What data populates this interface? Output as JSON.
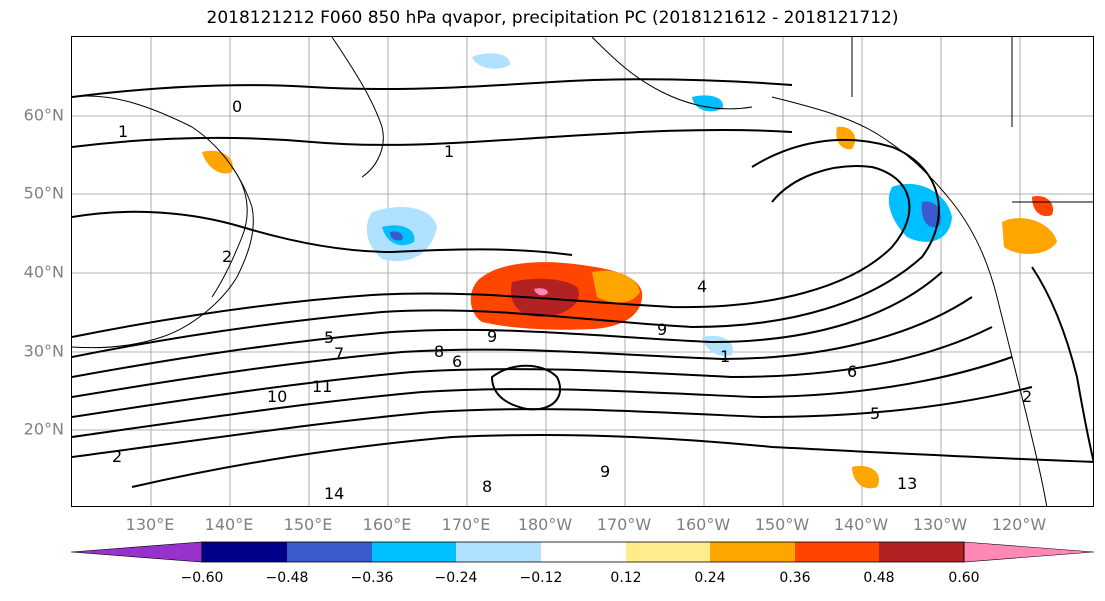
{
  "title": "2018121212 F060 850 hPa qvapor, precipitation PC (2018121612 - 2018121712)",
  "lat_labels": [
    "60°N",
    "50°N",
    "40°N",
    "30°N",
    "20°N"
  ],
  "lon_labels": [
    "130°E",
    "140°E",
    "150°E",
    "160°E",
    "170°E",
    "180°W",
    "170°W",
    "160°W",
    "150°W",
    "140°W",
    "130°W",
    "120°W"
  ],
  "colorbar": {
    "ticks": [
      "−0.60",
      "−0.48",
      "−0.36",
      "−0.24",
      "−0.12",
      "0.12",
      "0.24",
      "0.36",
      "0.48",
      "0.60"
    ],
    "colors": [
      "#9932cc",
      "#00008b",
      "#3a5bcc",
      "#00bfff",
      "#b0e2ff",
      "#ffffff",
      "#ffec8b",
      "#ffa500",
      "#ff4500",
      "#b22222",
      "#ff88b4"
    ]
  },
  "contour_labels": [
    "0",
    "1",
    "1",
    "2",
    "4",
    "5",
    "7",
    "8",
    "9",
    "10",
    "11",
    "13",
    "14",
    "2",
    "9",
    "6",
    "5",
    "2",
    "1",
    "9",
    "8",
    "6"
  ]
}
